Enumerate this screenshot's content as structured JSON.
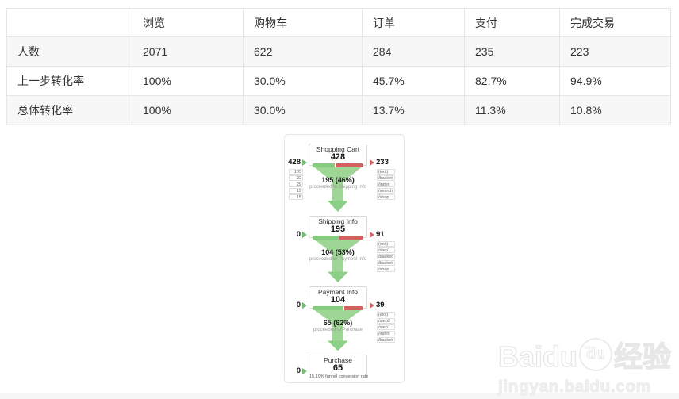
{
  "table": {
    "headers": [
      "",
      "浏览",
      "购物车",
      "订单",
      "支付",
      "完成交易"
    ],
    "rows": [
      {
        "label": "人数",
        "cells": [
          "2071",
          "622",
          "284",
          "235",
          "223"
        ]
      },
      {
        "label": "上一步转化率",
        "cells": [
          "100%",
          "30.0%",
          "45.7%",
          "82.7%",
          "94.9%"
        ]
      },
      {
        "label": "总体转化率",
        "cells": [
          "100%",
          "30.0%",
          "13.7%",
          "11.3%",
          "10.8%"
        ]
      }
    ]
  },
  "funnel": {
    "steps": [
      {
        "title": "Shopping Cart",
        "count": "428",
        "entered": "428",
        "exited": "233",
        "green_pct": 46,
        "sources": [
          "105",
          "22",
          "29",
          "19",
          "15"
        ],
        "exits": [
          "(exit)",
          "/basket",
          "/index",
          "/search",
          "/shop"
        ]
      },
      {
        "title": "Shipping Info",
        "count": "195",
        "entered": "0",
        "exited": "91",
        "green_pct": 53,
        "exits": [
          "(exit)",
          "/step1",
          "/basket",
          "/basket",
          "/shop"
        ]
      },
      {
        "title": "Payment Info",
        "count": "104",
        "entered": "0",
        "exited": "39",
        "green_pct": 62,
        "exits": [
          "(exit)",
          "/step2",
          "/step1",
          "/index",
          "/basket"
        ]
      },
      {
        "title": "Purchase",
        "count": "65",
        "entered": "0",
        "note": "15.19% funnel conversion rate"
      }
    ],
    "transitions": [
      {
        "label": "195 (46%)",
        "sub": "proceeded to Shipping Info"
      },
      {
        "label": "104 (53%)",
        "sub": "proceeded to Payment Info"
      },
      {
        "label": "65 (62%)",
        "sub": "proceeded to Purchase"
      }
    ]
  },
  "watermark": {
    "brand_en": "Baidu",
    "brand_du": "du",
    "brand_cn": "经验",
    "url": "jingyan.baidu.com"
  },
  "colors": {
    "bar_green": "#86cb80",
    "bar_red": "#d2605e",
    "funnel_green": "#9ed695",
    "stripe": "#f7f7f7",
    "border": "#e6e6e6"
  },
  "chart_data": [
    {
      "type": "table",
      "columns": [
        "",
        "浏览",
        "购物车",
        "订单",
        "支付",
        "完成交易"
      ],
      "rows": [
        [
          "人数",
          "2071",
          "622",
          "284",
          "235",
          "223"
        ],
        [
          "上一步转化率",
          "100%",
          "30.0%",
          "45.7%",
          "82.7%",
          "94.9%"
        ],
        [
          "总体转化率",
          "100%",
          "30.0%",
          "13.7%",
          "11.3%",
          "10.8%"
        ]
      ]
    },
    {
      "type": "funnel",
      "stages": [
        "Shopping Cart",
        "Shipping Info",
        "Payment Info",
        "Purchase"
      ],
      "values": [
        428,
        195,
        104,
        65
      ],
      "entered_direct": [
        428,
        0,
        0,
        0
      ],
      "exited": [
        233,
        91,
        39
      ],
      "step_conversion_pct": [
        46,
        53,
        62
      ],
      "overall_conversion": "15.19%",
      "legend_position": "none",
      "grid": false
    }
  ]
}
